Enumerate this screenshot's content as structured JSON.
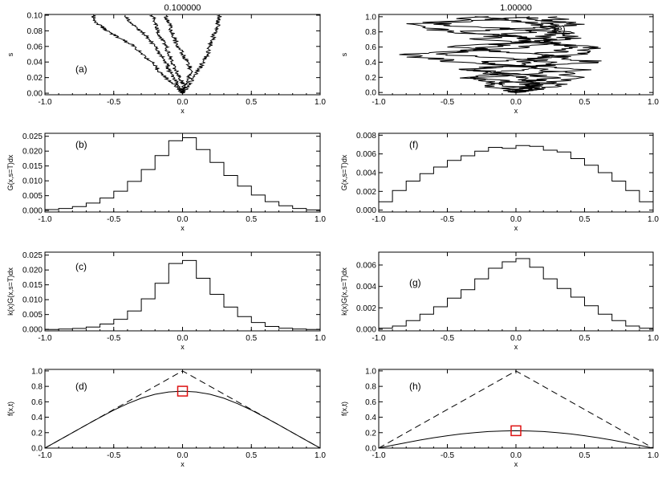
{
  "chart_data": [
    {
      "id": "a",
      "type": "line",
      "title": "0.100000",
      "panel_label": "(a)",
      "xlabel": "x",
      "ylabel": "s",
      "xlim": [
        -1.0,
        1.0
      ],
      "ylim": [
        -0.002,
        0.101
      ],
      "xticks": [
        "-1.0",
        "-0.5",
        "0.0",
        "0.5",
        "1.0"
      ],
      "xtick_values": [
        -1.0,
        -0.5,
        0.0,
        0.5,
        1.0
      ],
      "yticks": [
        "0.00",
        "0.02",
        "0.04",
        "0.06",
        "0.08",
        "0.10"
      ],
      "ytick_values": [
        0.0,
        0.02,
        0.04,
        0.06,
        0.08,
        0.1
      ],
      "series": [
        {
          "s": [
            0.0,
            0.01,
            0.02,
            0.03,
            0.04,
            0.05,
            0.06,
            0.07,
            0.08,
            0.09,
            0.1
          ],
          "x": [
            0.0,
            -0.05,
            -0.12,
            -0.18,
            -0.22,
            -0.3,
            -0.35,
            -0.45,
            -0.55,
            -0.62,
            -0.65
          ]
        },
        {
          "s": [
            0.0,
            0.01,
            0.02,
            0.03,
            0.04,
            0.05,
            0.06,
            0.07,
            0.08,
            0.09,
            0.1
          ],
          "x": [
            0.0,
            -0.03,
            -0.06,
            -0.1,
            -0.12,
            -0.16,
            -0.2,
            -0.25,
            -0.3,
            -0.38,
            -0.42
          ]
        },
        {
          "s": [
            0.0,
            0.01,
            0.02,
            0.03,
            0.04,
            0.05,
            0.06,
            0.07,
            0.08,
            0.09,
            0.1
          ],
          "x": [
            0.0,
            0.01,
            -0.02,
            -0.05,
            -0.08,
            -0.1,
            -0.12,
            -0.15,
            -0.18,
            -0.2,
            -0.22
          ]
        },
        {
          "s": [
            0.0,
            0.01,
            0.02,
            0.03,
            0.04,
            0.05,
            0.06,
            0.07,
            0.08,
            0.09,
            0.1
          ],
          "x": [
            0.0,
            0.02,
            0.05,
            0.06,
            0.04,
            0.0,
            -0.03,
            -0.06,
            -0.08,
            -0.1,
            -0.12
          ]
        },
        {
          "s": [
            0.0,
            0.01,
            0.02,
            0.03,
            0.04,
            0.05,
            0.06,
            0.07,
            0.08,
            0.09,
            0.1
          ],
          "x": [
            0.0,
            0.04,
            0.08,
            0.12,
            0.15,
            0.18,
            0.2,
            0.22,
            0.24,
            0.26,
            0.27
          ]
        }
      ]
    },
    {
      "id": "e",
      "type": "line",
      "title": "1.00000",
      "panel_label": "(e)",
      "xlabel": "x",
      "ylabel": "s",
      "xlim": [
        -1.0,
        1.0
      ],
      "ylim": [
        -0.03,
        1.03
      ],
      "xticks": [
        "-1.0",
        "-0.5",
        "0.0",
        "0.5",
        "1.0"
      ],
      "xtick_values": [
        -1.0,
        -0.5,
        0.0,
        0.5,
        1.0
      ],
      "yticks": [
        "0.0",
        "0.2",
        "0.4",
        "0.6",
        "0.8",
        "1.0"
      ],
      "ytick_values": [
        0.0,
        0.2,
        0.4,
        0.6,
        0.8,
        1.0
      ],
      "series": [
        {
          "s": [
            0.0,
            0.1,
            0.2,
            0.3,
            0.4,
            0.5,
            0.6,
            0.7,
            0.8,
            0.9,
            1.0
          ],
          "x": [
            0.0,
            0.2,
            -0.3,
            0.55,
            -0.4,
            -0.85,
            0.1,
            0.3,
            -0.5,
            -0.75,
            -0.2
          ]
        },
        {
          "s": [
            0.0,
            0.1,
            0.2,
            0.3,
            0.4,
            0.5,
            0.6,
            0.7,
            0.8,
            0.9,
            1.0
          ],
          "x": [
            0.0,
            -0.2,
            0.3,
            -0.4,
            0.6,
            0.2,
            -0.5,
            0.4,
            0.3,
            -0.6,
            0.1
          ]
        },
        {
          "s": [
            0.0,
            0.1,
            0.2,
            0.3,
            0.4,
            0.5,
            0.6,
            0.7,
            0.8,
            0.9,
            1.0
          ],
          "x": [
            0.0,
            0.1,
            0.5,
            0.2,
            -0.2,
            0.45,
            0.6,
            -0.3,
            0.1,
            0.25,
            0.3
          ]
        },
        {
          "s": [
            0.0,
            0.1,
            0.2,
            0.3,
            0.4,
            0.5,
            0.6,
            0.7,
            0.8,
            0.9,
            1.0
          ],
          "x": [
            0.0,
            -0.1,
            -0.35,
            0.05,
            0.3,
            -0.5,
            -0.2,
            0.1,
            0.4,
            0.2,
            -0.3
          ]
        },
        {
          "s": [
            0.0,
            0.1,
            0.2,
            0.3,
            0.4,
            0.5,
            0.6,
            0.7,
            0.8,
            0.9,
            1.0
          ],
          "x": [
            0.0,
            0.3,
            0.0,
            -0.3,
            0.1,
            0.2,
            0.45,
            0.2,
            -0.4,
            0.5,
            0.0
          ]
        }
      ]
    },
    {
      "id": "b",
      "type": "line",
      "panel_label": "(b)",
      "xlabel": "x",
      "ylabel": "G(x,s=T)dx",
      "xlim": [
        -1.0,
        1.0
      ],
      "ylim": [
        -0.0005,
        0.026
      ],
      "xticks": [
        "-1.0",
        "-0.5",
        "0.0",
        "0.5",
        "1.0"
      ],
      "xtick_values": [
        -1.0,
        -0.5,
        0.0,
        0.5,
        1.0
      ],
      "yticks": [
        "0.000",
        "0.005",
        "0.010",
        "0.015",
        "0.020",
        "0.025"
      ],
      "ytick_values": [
        0.0,
        0.005,
        0.01,
        0.015,
        0.02,
        0.025
      ],
      "x": [
        -0.95,
        -0.85,
        -0.75,
        -0.65,
        -0.55,
        -0.45,
        -0.35,
        -0.25,
        -0.15,
        -0.05,
        0.05,
        0.15,
        0.25,
        0.35,
        0.45,
        0.55,
        0.65,
        0.75,
        0.85,
        0.95
      ],
      "values": [
        0.0003,
        0.0007,
        0.0013,
        0.0025,
        0.0042,
        0.0065,
        0.0098,
        0.0138,
        0.0185,
        0.0235,
        0.0245,
        0.0205,
        0.0162,
        0.0118,
        0.0082,
        0.0052,
        0.003,
        0.0016,
        0.0007,
        0.0002
      ]
    },
    {
      "id": "f",
      "type": "line",
      "panel_label": "(f)",
      "xlabel": "x",
      "ylabel": "G(x,s=T)dx",
      "xlim": [
        -1.0,
        1.0
      ],
      "ylim": [
        -0.0002,
        0.0082
      ],
      "xticks": [
        "-1.0",
        "-0.5",
        "0.0",
        "0.5",
        "1.0"
      ],
      "xtick_values": [
        -1.0,
        -0.5,
        0.0,
        0.5,
        1.0
      ],
      "yticks": [
        "0.000",
        "0.002",
        "0.004",
        "0.006",
        "0.008"
      ],
      "ytick_values": [
        0.0,
        0.002,
        0.004,
        0.006,
        0.008
      ],
      "x": [
        -0.95,
        -0.85,
        -0.75,
        -0.65,
        -0.55,
        -0.45,
        -0.35,
        -0.25,
        -0.15,
        -0.05,
        0.05,
        0.15,
        0.25,
        0.35,
        0.45,
        0.55,
        0.65,
        0.75,
        0.85,
        0.95
      ],
      "values": [
        0.0009,
        0.0021,
        0.0031,
        0.0039,
        0.0046,
        0.0053,
        0.0058,
        0.0063,
        0.0067,
        0.0066,
        0.0069,
        0.0068,
        0.0064,
        0.0062,
        0.0055,
        0.0048,
        0.004,
        0.0031,
        0.0021,
        0.0009
      ]
    },
    {
      "id": "c",
      "type": "line",
      "panel_label": "(c)",
      "xlabel": "x",
      "ylabel": "k(x)G(x,s=T)dx",
      "xlim": [
        -1.0,
        1.0
      ],
      "ylim": [
        -0.0005,
        0.026
      ],
      "xticks": [
        "-1.0",
        "-0.5",
        "0.0",
        "0.5",
        "1.0"
      ],
      "xtick_values": [
        -1.0,
        -0.5,
        0.0,
        0.5,
        1.0
      ],
      "yticks": [
        "0.000",
        "0.005",
        "0.010",
        "0.015",
        "0.020",
        "0.025"
      ],
      "ytick_values": [
        0.0,
        0.005,
        0.01,
        0.015,
        0.02,
        0.025
      ],
      "x": [
        -0.95,
        -0.85,
        -0.75,
        -0.65,
        -0.55,
        -0.45,
        -0.35,
        -0.25,
        -0.15,
        -0.05,
        0.05,
        0.15,
        0.25,
        0.35,
        0.45,
        0.55,
        0.65,
        0.75,
        0.85,
        0.95
      ],
      "values": [
        0.0,
        0.0001,
        0.0003,
        0.0008,
        0.0018,
        0.0034,
        0.0062,
        0.0103,
        0.0155,
        0.0222,
        0.0232,
        0.0172,
        0.0118,
        0.0075,
        0.0043,
        0.0023,
        0.001,
        0.0004,
        0.0001,
        0.0
      ]
    },
    {
      "id": "g",
      "type": "line",
      "panel_label": "(g)",
      "xlabel": "x",
      "ylabel": "k(x)G(x,s=T)dx",
      "xlim": [
        -1.0,
        1.0
      ],
      "ylim": [
        -0.00015,
        0.0072
      ],
      "xticks": [
        "-1.0",
        "-0.5",
        "0.0",
        "0.5",
        "1.0"
      ],
      "xtick_values": [
        -1.0,
        -0.5,
        0.0,
        0.5,
        1.0
      ],
      "yticks": [
        "0.000",
        "0.002",
        "0.004",
        "0.006"
      ],
      "ytick_values": [
        0.0,
        0.002,
        0.004,
        0.006
      ],
      "x": [
        -0.95,
        -0.85,
        -0.75,
        -0.65,
        -0.55,
        -0.45,
        -0.35,
        -0.25,
        -0.15,
        -0.05,
        0.05,
        0.15,
        0.25,
        0.35,
        0.45,
        0.55,
        0.65,
        0.75,
        0.85,
        0.95
      ],
      "values": [
        0.0001,
        0.0003,
        0.0008,
        0.0014,
        0.0021,
        0.0029,
        0.0037,
        0.0047,
        0.0057,
        0.0063,
        0.0066,
        0.0058,
        0.0047,
        0.0038,
        0.003,
        0.0022,
        0.0014,
        0.0008,
        0.0003,
        0.0001
      ]
    },
    {
      "id": "d",
      "type": "line",
      "panel_label": "(d)",
      "xlabel": "x",
      "ylabel": "f(x,t)",
      "xlim": [
        -1.0,
        1.0
      ],
      "ylim": [
        0.0,
        1.02
      ],
      "xticks": [
        "-1.0",
        "-0.5",
        "0.0",
        "0.5",
        "1.0"
      ],
      "xtick_values": [
        -1.0,
        -0.5,
        0.0,
        0.5,
        1.0
      ],
      "yticks": [
        "0.0",
        "0.2",
        "0.4",
        "0.6",
        "0.8",
        "1.0"
      ],
      "ytick_values": [
        0.0,
        0.2,
        0.4,
        0.6,
        0.8,
        1.0
      ],
      "series": [
        {
          "x": [
            -1.0,
            -0.9,
            -0.8,
            -0.7,
            -0.6,
            -0.5,
            -0.4,
            -0.3,
            -0.2,
            -0.1,
            0.0,
            0.1,
            0.2,
            0.3,
            0.4,
            0.5,
            0.6,
            0.7,
            0.8,
            0.9,
            1.0
          ],
          "values": [
            0.0,
            0.1,
            0.2,
            0.3,
            0.398,
            0.492,
            0.576,
            0.646,
            0.697,
            0.728,
            0.738,
            0.728,
            0.697,
            0.646,
            0.576,
            0.492,
            0.398,
            0.3,
            0.2,
            0.1,
            0.0
          ]
        },
        {
          "x": [
            -1.0,
            0.0,
            1.0
          ],
          "values": [
            0.0,
            1.0,
            0.0
          ],
          "dashed": true
        }
      ],
      "marker": {
        "x": 0.0,
        "y": 0.738,
        "shape": "square",
        "color": "#dd1111"
      }
    },
    {
      "id": "h",
      "type": "line",
      "panel_label": "(h)",
      "xlabel": "x",
      "ylabel": "f(x,t)",
      "xlim": [
        -1.0,
        1.0
      ],
      "ylim": [
        0.0,
        1.02
      ],
      "xticks": [
        "-1.0",
        "-0.5",
        "0.0",
        "0.5",
        "1.0"
      ],
      "xtick_values": [
        -1.0,
        -0.5,
        0.0,
        0.5,
        1.0
      ],
      "yticks": [
        "0.0",
        "0.2",
        "0.4",
        "0.6",
        "0.8",
        "1.0"
      ],
      "ytick_values": [
        0.0,
        0.2,
        0.4,
        0.6,
        0.8,
        1.0
      ],
      "series": [
        {
          "x": [
            -1.0,
            -0.9,
            -0.8,
            -0.7,
            -0.6,
            -0.5,
            -0.4,
            -0.3,
            -0.2,
            -0.1,
            0.0,
            0.1,
            0.2,
            0.3,
            0.4,
            0.5,
            0.6,
            0.7,
            0.8,
            0.9,
            1.0
          ],
          "values": [
            0.0,
            0.036,
            0.071,
            0.104,
            0.134,
            0.16,
            0.183,
            0.201,
            0.214,
            0.222,
            0.225,
            0.222,
            0.214,
            0.201,
            0.183,
            0.16,
            0.134,
            0.104,
            0.071,
            0.036,
            0.0
          ]
        },
        {
          "x": [
            -1.0,
            0.0,
            1.0
          ],
          "values": [
            0.0,
            1.0,
            0.0
          ],
          "dashed": true
        }
      ],
      "marker": {
        "x": 0.0,
        "y": 0.225,
        "shape": "square",
        "color": "#dd1111"
      }
    }
  ]
}
